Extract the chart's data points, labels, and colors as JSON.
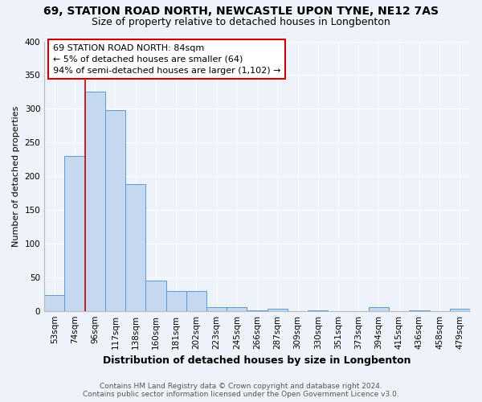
{
  "title": "69, STATION ROAD NORTH, NEWCASTLE UPON TYNE, NE12 7AS",
  "subtitle": "Size of property relative to detached houses in Longbenton",
  "xlabel": "Distribution of detached houses by size in Longbenton",
  "ylabel": "Number of detached properties",
  "footnote1": "Contains HM Land Registry data © Crown copyright and database right 2024.",
  "footnote2": "Contains public sector information licensed under the Open Government Licence v3.0.",
  "categories": [
    "53sqm",
    "74sqm",
    "96sqm",
    "117sqm",
    "138sqm",
    "160sqm",
    "181sqm",
    "202sqm",
    "223sqm",
    "245sqm",
    "266sqm",
    "287sqm",
    "309sqm",
    "330sqm",
    "351sqm",
    "373sqm",
    "394sqm",
    "415sqm",
    "436sqm",
    "458sqm",
    "479sqm"
  ],
  "values": [
    24,
    230,
    325,
    298,
    188,
    45,
    29,
    30,
    5,
    6,
    1,
    3,
    0,
    1,
    0,
    0,
    5,
    0,
    1,
    0,
    3
  ],
  "bar_color": "#c5d8f0",
  "bar_edge_color": "#5b9bd5",
  "red_line_x": 1.5,
  "annotation_title": "69 STATION ROAD NORTH: 84sqm",
  "annotation_line1": "← 5% of detached houses are smaller (64)",
  "annotation_line2": "94% of semi-detached houses are larger (1,102) →",
  "annotation_box_color": "#ffffff",
  "annotation_box_edge": "#cc0000",
  "red_line_color": "#cc0000",
  "background_color": "#eef2f9",
  "ylim": [
    0,
    400
  ],
  "yticks": [
    0,
    50,
    100,
    150,
    200,
    250,
    300,
    350,
    400
  ],
  "title_fontsize": 10,
  "subtitle_fontsize": 9,
  "ylabel_fontsize": 8,
  "xlabel_fontsize": 9,
  "tick_fontsize": 7.5,
  "annot_fontsize": 8,
  "footnote_fontsize": 6.5
}
